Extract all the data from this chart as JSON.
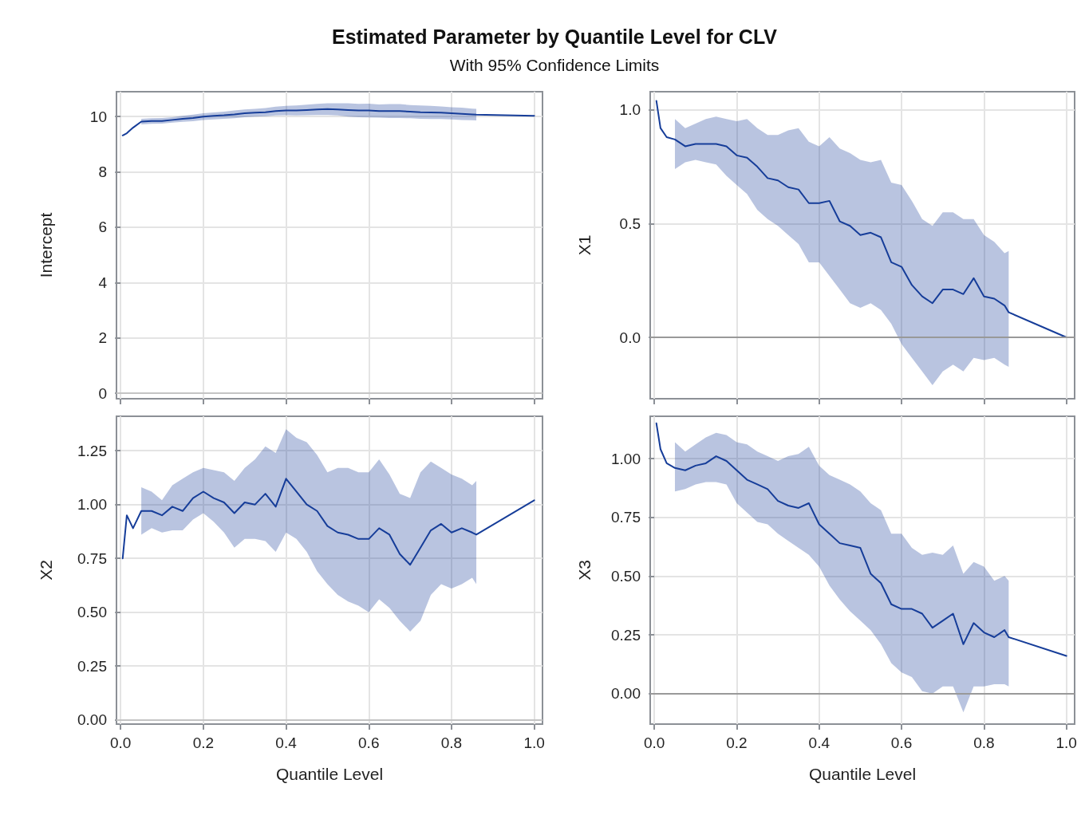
{
  "chart_data": [
    {
      "type": "line",
      "title": "Estimated Parameter by Quantile Level for CLV",
      "subtitle": "With 95% Confidence Limits",
      "ylabel": "Intercept",
      "grid": true,
      "marker": "none",
      "line_style": "solid",
      "tick_labels": "y",
      "xlim": [
        -0.01,
        1.02
      ],
      "xticks": [
        0,
        0.2,
        0.4,
        0.6,
        0.8,
        1
      ],
      "ylim": [
        -0.2,
        10.9
      ],
      "yticks": [
        0,
        2,
        4,
        6,
        8,
        10
      ],
      "ref_lines": [
        {
          "axis": "y",
          "value": 0,
          "color": "#c4c4c4"
        }
      ],
      "x": [
        0.005,
        0.015,
        0.03,
        0.05,
        0.075,
        0.1,
        0.125,
        0.15,
        0.175,
        0.2,
        0.225,
        0.25,
        0.275,
        0.3,
        0.325,
        0.35,
        0.375,
        0.4,
        0.425,
        0.45,
        0.475,
        0.5,
        0.525,
        0.55,
        0.575,
        0.6,
        0.625,
        0.65,
        0.675,
        0.7,
        0.725,
        0.75,
        0.775,
        0.8,
        0.825,
        0.85,
        0.86,
        1.0
      ],
      "series": [
        {
          "color": "#163d99",
          "values": [
            9.32,
            9.4,
            9.6,
            9.82,
            9.84,
            9.84,
            9.88,
            9.92,
            9.95,
            10.0,
            10.03,
            10.05,
            10.08,
            10.12,
            10.14,
            10.16,
            10.2,
            10.22,
            10.22,
            10.24,
            10.26,
            10.27,
            10.26,
            10.24,
            10.22,
            10.22,
            10.2,
            10.2,
            10.2,
            10.18,
            10.16,
            10.15,
            10.14,
            10.12,
            10.1,
            10.08,
            10.07,
            10.03
          ],
          "lower": [
            null,
            null,
            null,
            9.72,
            9.74,
            9.75,
            9.78,
            9.81,
            9.83,
            9.88,
            9.9,
            9.92,
            9.94,
            9.98,
            10.0,
            10.01,
            10.04,
            10.05,
            10.04,
            10.05,
            10.06,
            10.06,
            10.04,
            10.0,
            9.98,
            9.97,
            9.96,
            9.95,
            9.95,
            9.94,
            9.92,
            9.91,
            9.91,
            9.9,
            9.88,
            9.87,
            9.86,
            null
          ],
          "upper": [
            null,
            null,
            null,
            9.92,
            9.94,
            9.95,
            9.98,
            10.03,
            10.07,
            10.12,
            10.15,
            10.18,
            10.22,
            10.26,
            10.28,
            10.31,
            10.36,
            10.39,
            10.4,
            10.43,
            10.46,
            10.48,
            10.48,
            10.48,
            10.46,
            10.47,
            10.44,
            10.45,
            10.45,
            10.42,
            10.4,
            10.39,
            10.37,
            10.34,
            10.32,
            10.29,
            10.28,
            null
          ]
        }
      ]
    },
    {
      "type": "line",
      "ylabel": "X1",
      "grid": true,
      "marker": "none",
      "line_style": "solid",
      "tick_labels": "y",
      "xlim": [
        -0.01,
        1.02
      ],
      "xticks": [
        0,
        0.2,
        0.4,
        0.6,
        0.8,
        1
      ],
      "ylim": [
        -0.27,
        1.08
      ],
      "yticks": [
        {
          "value": 0,
          "label": "0.0"
        },
        {
          "value": 0.5,
          "label": "0.5"
        },
        {
          "value": 1,
          "label": "1.0"
        }
      ],
      "ref_lines": [
        {
          "axis": "y",
          "value": 0,
          "color": "#999999"
        }
      ],
      "x": [
        0.005,
        0.015,
        0.03,
        0.05,
        0.075,
        0.1,
        0.125,
        0.15,
        0.175,
        0.2,
        0.225,
        0.25,
        0.275,
        0.3,
        0.325,
        0.35,
        0.375,
        0.4,
        0.425,
        0.45,
        0.475,
        0.5,
        0.525,
        0.55,
        0.575,
        0.6,
        0.625,
        0.65,
        0.675,
        0.7,
        0.725,
        0.75,
        0.775,
        0.8,
        0.825,
        0.85,
        0.86,
        1.0
      ],
      "series": [
        {
          "color": "#163d99",
          "values": [
            1.04,
            0.92,
            0.88,
            0.87,
            0.84,
            0.85,
            0.85,
            0.85,
            0.84,
            0.8,
            0.79,
            0.75,
            0.7,
            0.69,
            0.66,
            0.65,
            0.59,
            0.59,
            0.6,
            0.51,
            0.49,
            0.45,
            0.46,
            0.44,
            0.33,
            0.31,
            0.23,
            0.18,
            0.15,
            0.21,
            0.21,
            0.19,
            0.26,
            0.18,
            0.17,
            0.14,
            0.11,
            0.0
          ],
          "lower": [
            null,
            null,
            null,
            0.74,
            0.77,
            0.78,
            0.77,
            0.76,
            0.71,
            0.67,
            0.63,
            0.56,
            0.52,
            0.49,
            0.45,
            0.41,
            0.33,
            0.33,
            0.27,
            0.21,
            0.15,
            0.13,
            0.15,
            0.12,
            0.06,
            -0.03,
            -0.09,
            -0.15,
            -0.21,
            -0.15,
            -0.12,
            -0.15,
            -0.09,
            -0.1,
            -0.09,
            -0.12,
            -0.13,
            null
          ],
          "upper": [
            null,
            null,
            null,
            0.96,
            0.92,
            0.94,
            0.96,
            0.97,
            0.96,
            0.95,
            0.96,
            0.92,
            0.89,
            0.89,
            0.91,
            0.92,
            0.86,
            0.84,
            0.88,
            0.83,
            0.81,
            0.78,
            0.77,
            0.78,
            0.68,
            0.67,
            0.6,
            0.52,
            0.49,
            0.55,
            0.55,
            0.52,
            0.52,
            0.45,
            0.42,
            0.37,
            0.38,
            null
          ]
        }
      ]
    },
    {
      "type": "line",
      "xlabel": "Quantile Level",
      "ylabel": "X2",
      "grid": true,
      "marker": "none",
      "line_style": "solid",
      "xlim": [
        -0.01,
        1.02
      ],
      "xticks": [
        {
          "value": 0,
          "label": "0.0"
        },
        {
          "value": 0.2,
          "label": "0.2"
        },
        {
          "value": 0.4,
          "label": "0.4"
        },
        {
          "value": 0.6,
          "label": "0.6"
        },
        {
          "value": 0.8,
          "label": "0.8"
        },
        {
          "value": 1,
          "label": "1.0"
        }
      ],
      "ylim": [
        -0.02,
        1.41
      ],
      "yticks": [
        {
          "value": 0,
          "label": "0.00"
        },
        {
          "value": 0.25,
          "label": "0.25"
        },
        {
          "value": 0.5,
          "label": "0.50"
        },
        {
          "value": 0.75,
          "label": "0.75"
        },
        {
          "value": 1,
          "label": "1.00"
        },
        {
          "value": 1.25,
          "label": "1.25"
        }
      ],
      "ref_lines": [
        {
          "axis": "y",
          "value": 0,
          "color": "#c4c4c4"
        }
      ],
      "x": [
        0.005,
        0.015,
        0.03,
        0.05,
        0.075,
        0.1,
        0.125,
        0.15,
        0.175,
        0.2,
        0.225,
        0.25,
        0.275,
        0.3,
        0.325,
        0.35,
        0.375,
        0.4,
        0.425,
        0.45,
        0.475,
        0.5,
        0.525,
        0.55,
        0.575,
        0.6,
        0.625,
        0.65,
        0.675,
        0.7,
        0.725,
        0.75,
        0.775,
        0.8,
        0.825,
        0.85,
        0.86,
        1.0
      ],
      "series": [
        {
          "color": "#163d99",
          "values": [
            0.75,
            0.95,
            0.89,
            0.97,
            0.97,
            0.95,
            0.99,
            0.97,
            1.03,
            1.06,
            1.03,
            1.01,
            0.96,
            1.01,
            1.0,
            1.05,
            0.99,
            1.12,
            1.06,
            1.0,
            0.97,
            0.9,
            0.87,
            0.86,
            0.84,
            0.84,
            0.89,
            0.86,
            0.77,
            0.72,
            0.8,
            0.88,
            0.91,
            0.87,
            0.89,
            0.87,
            0.86,
            1.02
          ],
          "lower": [
            null,
            null,
            null,
            0.86,
            0.89,
            0.87,
            0.88,
            0.88,
            0.93,
            0.96,
            0.92,
            0.87,
            0.8,
            0.84,
            0.84,
            0.83,
            0.78,
            0.87,
            0.84,
            0.78,
            0.69,
            0.63,
            0.58,
            0.55,
            0.53,
            0.5,
            0.56,
            0.52,
            0.46,
            0.41,
            0.46,
            0.58,
            0.63,
            0.61,
            0.63,
            0.66,
            0.63,
            null
          ],
          "upper": [
            null,
            null,
            null,
            1.08,
            1.06,
            1.02,
            1.09,
            1.12,
            1.15,
            1.17,
            1.16,
            1.15,
            1.11,
            1.17,
            1.21,
            1.27,
            1.24,
            1.35,
            1.31,
            1.29,
            1.23,
            1.15,
            1.17,
            1.17,
            1.15,
            1.15,
            1.21,
            1.14,
            1.05,
            1.03,
            1.15,
            1.2,
            1.17,
            1.14,
            1.12,
            1.09,
            1.11,
            null
          ]
        }
      ]
    },
    {
      "type": "line",
      "xlabel": "Quantile Level",
      "ylabel": "X3",
      "grid": true,
      "marker": "none",
      "line_style": "solid",
      "xlim": [
        -0.01,
        1.02
      ],
      "xticks": [
        {
          "value": 0,
          "label": "0.0"
        },
        {
          "value": 0.2,
          "label": "0.2"
        },
        {
          "value": 0.4,
          "label": "0.4"
        },
        {
          "value": 0.6,
          "label": "0.6"
        },
        {
          "value": 0.8,
          "label": "0.8"
        },
        {
          "value": 1,
          "label": "1.0"
        }
      ],
      "ylim": [
        -0.13,
        1.18
      ],
      "yticks": [
        {
          "value": 0,
          "label": "0.00"
        },
        {
          "value": 0.25,
          "label": "0.25"
        },
        {
          "value": 0.5,
          "label": "0.50"
        },
        {
          "value": 0.75,
          "label": "0.75"
        },
        {
          "value": 1,
          "label": "1.00"
        }
      ],
      "ref_lines": [
        {
          "axis": "y",
          "value": 0,
          "color": "#999999"
        }
      ],
      "x": [
        0.005,
        0.015,
        0.03,
        0.05,
        0.075,
        0.1,
        0.125,
        0.15,
        0.175,
        0.2,
        0.225,
        0.25,
        0.275,
        0.3,
        0.325,
        0.35,
        0.375,
        0.4,
        0.425,
        0.45,
        0.475,
        0.5,
        0.525,
        0.55,
        0.575,
        0.6,
        0.625,
        0.65,
        0.675,
        0.7,
        0.725,
        0.75,
        0.775,
        0.8,
        0.825,
        0.85,
        0.86,
        1.0
      ],
      "series": [
        {
          "color": "#163d99",
          "values": [
            1.15,
            1.04,
            0.98,
            0.96,
            0.95,
            0.97,
            0.98,
            1.01,
            0.99,
            0.95,
            0.91,
            0.89,
            0.87,
            0.82,
            0.8,
            0.79,
            0.81,
            0.72,
            0.68,
            0.64,
            0.63,
            0.62,
            0.51,
            0.47,
            0.38,
            0.36,
            0.36,
            0.34,
            0.28,
            0.31,
            0.34,
            0.21,
            0.3,
            0.26,
            0.24,
            0.27,
            0.24,
            0.16
          ],
          "lower": [
            null,
            null,
            null,
            0.86,
            0.87,
            0.89,
            0.9,
            0.9,
            0.89,
            0.81,
            0.77,
            0.73,
            0.72,
            0.68,
            0.65,
            0.62,
            0.59,
            0.54,
            0.46,
            0.4,
            0.35,
            0.31,
            0.27,
            0.21,
            0.13,
            0.09,
            0.07,
            0.01,
            0.0,
            0.03,
            0.03,
            -0.08,
            0.03,
            0.03,
            0.04,
            0.04,
            0.03,
            null
          ],
          "upper": [
            null,
            null,
            null,
            1.07,
            1.03,
            1.06,
            1.09,
            1.11,
            1.1,
            1.07,
            1.06,
            1.03,
            1.01,
            0.99,
            1.01,
            1.02,
            1.05,
            0.97,
            0.93,
            0.91,
            0.89,
            0.86,
            0.81,
            0.78,
            0.68,
            0.68,
            0.62,
            0.59,
            0.6,
            0.59,
            0.63,
            0.51,
            0.56,
            0.54,
            0.48,
            0.5,
            0.48,
            null
          ]
        }
      ]
    }
  ]
}
